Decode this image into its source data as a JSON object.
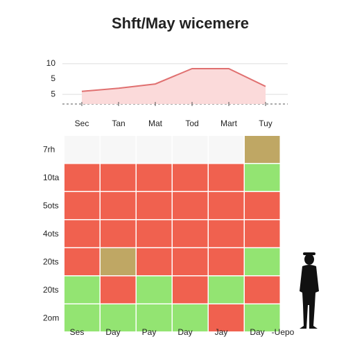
{
  "title": "Shft/May wicemere",
  "chart_data": [
    {
      "type": "line",
      "categories": [
        "Sec",
        "Tan",
        "Mat",
        "Tod",
        "Mart",
        "Tuy"
      ],
      "values": [
        5.5,
        6,
        6.7,
        9.2,
        9.2,
        6.3
      ],
      "color": "#e07070",
      "fill": "#fbdada",
      "ylim": [
        4,
        11
      ],
      "yticks": [
        10,
        5
      ],
      "grid": true,
      "annotations": [
        "5"
      ]
    },
    {
      "type": "heatmap",
      "rows": [
        "7rh",
        "10ta",
        "5ots",
        "4ots",
        "20ts",
        "20ts",
        "2om"
      ],
      "columns": [
        "Ses",
        "Day",
        "Pay",
        "Day",
        "Jay",
        "Day"
      ],
      "values": [
        [
          0,
          0,
          0,
          0,
          0,
          3
        ],
        [
          1,
          1,
          1,
          1,
          1,
          2
        ],
        [
          1,
          1,
          1,
          1,
          1,
          1
        ],
        [
          1,
          1,
          1,
          1,
          1,
          1
        ],
        [
          1,
          3,
          1,
          1,
          1,
          2
        ],
        [
          2,
          1,
          2,
          1,
          2,
          1
        ],
        [
          2,
          2,
          2,
          2,
          1,
          2
        ]
      ],
      "palette": [
        "#f7f7f7",
        "#f0614f",
        "#93e472",
        "#bfa764"
      ],
      "annotations": [
        "-Uepo"
      ]
    }
  ]
}
